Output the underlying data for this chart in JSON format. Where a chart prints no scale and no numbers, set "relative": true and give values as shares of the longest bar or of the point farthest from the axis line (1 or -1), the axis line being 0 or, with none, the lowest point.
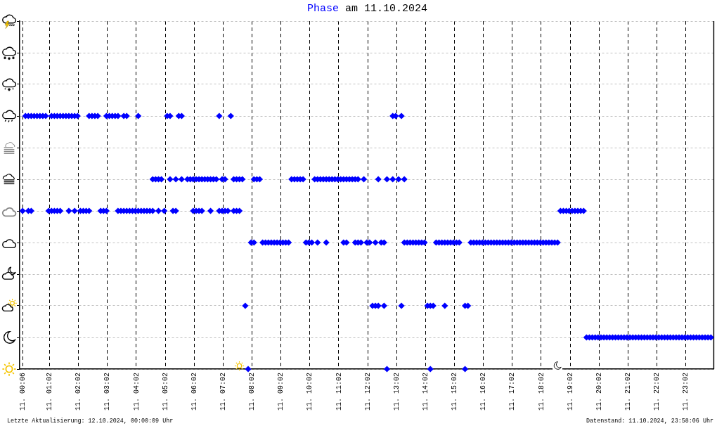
{
  "chart_data": {
    "type": "scatter",
    "title": "am 11.10.2024",
    "relative": true,
    "annotations": [
      "Letzte Aktualisierung: 12.10.2024, 00:00:09 Uhr",
      "Datenstand: 11.10.2024, 23:58:06 Uhr"
    ],
    "x": [
      "2024-10-11T00:12",
      "2024-10-11T00:18",
      "2024-10-11T00:24",
      "2024-10-11T00:30",
      "2024-10-11T00:36",
      "2024-10-11T00:42",
      "2024-10-11T00:48",
      "2024-10-11T00:54",
      "2024-10-11T01:06",
      "2024-10-11T01:12",
      "2024-10-11T01:18",
      "2024-10-11T01:24",
      "2024-10-11T01:30",
      "2024-10-11T01:36",
      "2024-10-11T01:42",
      "2024-10-11T01:48",
      "2024-10-11T01:54",
      "2024-10-11T02:00",
      "2024-10-11T02:24",
      "2024-10-11T02:30",
      "2024-10-11T02:36",
      "2024-10-11T02:42",
      "2024-10-11T03:00",
      "2024-10-11T03:06",
      "2024-10-11T03:12",
      "2024-10-11T03:18",
      "2024-10-11T03:24",
      "2024-10-11T03:36",
      "2024-10-11T03:42",
      "2024-10-11T04:06",
      "2024-10-11T05:06",
      "2024-10-11T05:12",
      "2024-10-11T05:30",
      "2024-10-11T05:36",
      "2024-10-11T06:54",
      "2024-10-11T07:18",
      "2024-10-11T12:54",
      "2024-10-11T13:00",
      "2024-10-11T13:12",
      "2024-10-11T04:36",
      "2024-10-11T04:42",
      "2024-10-11T04:48",
      "2024-10-11T04:54",
      "2024-10-11T05:12",
      "2024-10-11T05:24",
      "2024-10-11T05:36",
      "2024-10-11T05:48",
      "2024-10-11T05:54",
      "2024-10-11T06:00",
      "2024-10-11T06:06",
      "2024-10-11T06:12",
      "2024-10-11T06:18",
      "2024-10-11T06:24",
      "2024-10-11T06:30",
      "2024-10-11T06:36",
      "2024-10-11T06:42",
      "2024-10-11T06:48",
      "2024-10-11T07:00",
      "2024-10-11T07:06",
      "2024-10-11T07:24",
      "2024-10-11T07:30",
      "2024-10-11T07:36",
      "2024-10-11T07:42",
      "2024-10-11T08:06",
      "2024-10-11T08:12",
      "2024-10-11T08:18",
      "2024-10-11T09:24",
      "2024-10-11T09:30",
      "2024-10-11T09:36",
      "2024-10-11T09:42",
      "2024-10-11T09:48",
      "2024-10-11T10:12",
      "2024-10-11T10:18",
      "2024-10-11T10:24",
      "2024-10-11T10:30",
      "2024-10-11T10:36",
      "2024-10-11T10:42",
      "2024-10-11T10:48",
      "2024-10-11T10:54",
      "2024-10-11T11:00",
      "2024-10-11T11:06",
      "2024-10-11T11:12",
      "2024-10-11T11:18",
      "2024-10-11T11:24",
      "2024-10-11T11:30",
      "2024-10-11T11:36",
      "2024-10-11T11:42",
      "2024-10-11T11:54",
      "2024-10-11T12:24",
      "2024-10-11T12:42",
      "2024-10-11T12:54",
      "2024-10-11T13:06",
      "2024-10-11T13:18",
      "2024-10-11T00:06",
      "2024-10-11T00:18",
      "2024-10-11T00:24",
      "2024-10-11T01:00",
      "2024-10-11T01:06",
      "2024-10-11T01:12",
      "2024-10-11T01:18",
      "2024-10-11T01:24",
      "2024-10-11T01:42",
      "2024-10-11T01:54",
      "2024-10-11T02:06",
      "2024-10-11T02:12",
      "2024-10-11T02:18",
      "2024-10-11T02:24",
      "2024-10-11T02:48",
      "2024-10-11T02:54",
      "2024-10-11T03:00",
      "2024-10-11T03:24",
      "2024-10-11T03:30",
      "2024-10-11T03:36",
      "2024-10-11T03:42",
      "2024-10-11T03:48",
      "2024-10-11T03:54",
      "2024-10-11T04:00",
      "2024-10-11T04:06",
      "2024-10-11T04:12",
      "2024-10-11T04:18",
      "2024-10-11T04:24",
      "2024-10-11T04:30",
      "2024-10-11T04:36",
      "2024-10-11T04:48",
      "2024-10-11T05:00",
      "2024-10-11T05:18",
      "2024-10-11T05:24",
      "2024-10-11T06:00",
      "2024-10-11T06:06",
      "2024-10-11T06:12",
      "2024-10-11T06:18",
      "2024-10-11T06:36",
      "2024-10-11T06:54",
      "2024-10-11T07:00",
      "2024-10-11T07:06",
      "2024-10-11T07:12",
      "2024-10-11T07:24",
      "2024-10-11T07:30",
      "2024-10-11T07:36",
      "2024-10-11T18:42",
      "2024-10-11T18:48",
      "2024-10-11T18:54",
      "2024-10-11T19:00",
      "2024-10-11T19:06",
      "2024-10-11T19:12",
      "2024-10-11T19:18",
      "2024-10-11T19:24",
      "2024-10-11T19:30",
      "2024-10-11T08:00",
      "2024-10-11T08:06",
      "2024-10-11T08:24",
      "2024-10-11T08:30",
      "2024-10-11T08:36",
      "2024-10-11T08:42",
      "2024-10-11T08:48",
      "2024-10-11T08:54",
      "2024-10-11T09:00",
      "2024-10-11T09:06",
      "2024-10-11T09:12",
      "2024-10-11T09:18",
      "2024-10-11T09:54",
      "2024-10-11T10:00",
      "2024-10-11T10:06",
      "2024-10-11T10:18",
      "2024-10-11T10:36",
      "2024-10-11T11:12",
      "2024-10-11T11:18",
      "2024-10-11T11:36",
      "2024-10-11T11:42",
      "2024-10-11T11:48",
      "2024-10-11T12:00",
      "2024-10-11T12:06",
      "2024-10-11T12:18",
      "2024-10-11T12:30",
      "2024-10-11T12:36",
      "2024-10-11T13:18",
      "2024-10-11T13:24",
      "2024-10-11T13:30",
      "2024-10-11T13:36",
      "2024-10-11T13:42",
      "2024-10-11T13:48",
      "2024-10-11T13:54",
      "2024-10-11T14:00",
      "2024-10-11T14:24",
      "2024-10-11T14:30",
      "2024-10-11T14:36",
      "2024-10-11T14:42",
      "2024-10-11T14:48",
      "2024-10-11T14:54",
      "2024-10-11T15:00",
      "2024-10-11T15:06",
      "2024-10-11T15:12",
      "2024-10-11T15:36",
      "2024-10-11T15:42",
      "2024-10-11T15:48",
      "2024-10-11T15:54",
      "2024-10-11T16:00",
      "2024-10-11T16:06",
      "2024-10-11T16:12",
      "2024-10-11T16:18",
      "2024-10-11T16:24",
      "2024-10-11T16:30",
      "2024-10-11T16:36",
      "2024-10-11T16:42",
      "2024-10-11T16:48",
      "2024-10-11T16:54",
      "2024-10-11T17:00",
      "2024-10-11T17:06",
      "2024-10-11T17:12",
      "2024-10-11T17:18",
      "2024-10-11T17:24",
      "2024-10-11T17:30",
      "2024-10-11T17:36",
      "2024-10-11T17:42",
      "2024-10-11T17:48",
      "2024-10-11T17:54",
      "2024-10-11T18:00",
      "2024-10-11T18:06",
      "2024-10-11T18:12",
      "2024-10-11T18:18",
      "2024-10-11T18:24",
      "2024-10-11T18:30",
      "2024-10-11T18:36",
      "2024-10-11T07:48",
      "2024-10-11T12:12",
      "2024-10-11T12:18",
      "2024-10-11T12:24",
      "2024-10-11T12:36",
      "2024-10-11T13:12",
      "2024-10-11T14:06",
      "2024-10-11T14:12",
      "2024-10-11T14:18",
      "2024-10-11T14:42",
      "2024-10-11T15:24",
      "2024-10-11T15:30",
      "2024-10-11T19:36",
      "2024-10-11T19:42",
      "2024-10-11T19:48",
      "2024-10-11T19:54",
      "2024-10-11T20:00",
      "2024-10-11T20:06",
      "2024-10-11T20:12",
      "2024-10-11T20:18",
      "2024-10-11T20:24",
      "2024-10-11T20:30",
      "2024-10-11T20:36",
      "2024-10-11T20:42",
      "2024-10-11T20:48",
      "2024-10-11T20:54",
      "2024-10-11T21:00",
      "2024-10-11T21:06",
      "2024-10-11T21:12",
      "2024-10-11T21:18",
      "2024-10-11T21:24",
      "2024-10-11T21:30",
      "2024-10-11T21:36",
      "2024-10-11T21:42",
      "2024-10-11T21:48",
      "2024-10-11T21:54",
      "2024-10-11T22:00",
      "2024-10-11T22:06",
      "2024-10-11T22:12",
      "2024-10-11T22:18",
      "2024-10-11T22:24",
      "2024-10-11T22:30",
      "2024-10-11T22:36",
      "2024-10-11T22:42",
      "2024-10-11T22:48",
      "2024-10-11T22:54",
      "2024-10-11T23:00",
      "2024-10-11T23:06",
      "2024-10-11T23:12",
      "2024-10-11T23:18",
      "2024-10-11T23:24",
      "2024-10-11T23:30",
      "2024-10-11T23:36",
      "2024-10-11T23:42",
      "2024-10-11T23:48",
      "2024-10-11T23:54",
      "2024-10-11T07:54",
      "2024-10-11T12:42",
      "2024-10-11T14:12",
      "2024-10-11T15:24"
    ],
    "series": [
      {
        "name": "Phase",
        "color": "#0000ff",
        "values": [
          1,
          1,
          1,
          1,
          1,
          1,
          1,
          1,
          1,
          1,
          1,
          1,
          1,
          1,
          1,
          1,
          1,
          1,
          1,
          1,
          1,
          1,
          1,
          1,
          1,
          1,
          1,
          1,
          1,
          1,
          1,
          1,
          1,
          1,
          1,
          1,
          1,
          1,
          1,
          0.75,
          0.75,
          0.75,
          0.75,
          0.75,
          0.75,
          0.75,
          0.75,
          0.75,
          0.75,
          0.75,
          0.75,
          0.75,
          0.75,
          0.75,
          0.75,
          0.75,
          0.75,
          0.75,
          0.75,
          0.75,
          0.75,
          0.75,
          0.75,
          0.75,
          0.75,
          0.75,
          0.75,
          0.75,
          0.75,
          0.75,
          0.75,
          0.75,
          0.75,
          0.75,
          0.75,
          0.75,
          0.75,
          0.75,
          0.75,
          0.75,
          0.75,
          0.75,
          0.75,
          0.75,
          0.75,
          0.75,
          0.75,
          0.75,
          0.75,
          0.75,
          0.75,
          0.75,
          0.75,
          0.625,
          0.625,
          0.625,
          0.625,
          0.625,
          0.625,
          0.625,
          0.625,
          0.625,
          0.625,
          0.625,
          0.625,
          0.625,
          0.625,
          0.625,
          0.625,
          0.625,
          0.625,
          0.625,
          0.625,
          0.625,
          0.625,
          0.625,
          0.625,
          0.625,
          0.625,
          0.625,
          0.625,
          0.625,
          0.625,
          0.625,
          0.625,
          0.625,
          0.625,
          0.625,
          0.625,
          0.625,
          0.625,
          0.625,
          0.625,
          0.625,
          0.625,
          0.625,
          0.625,
          0.625,
          0.625,
          0.625,
          0.625,
          0.625,
          0.625,
          0.625,
          0.625,
          0.625,
          0.625,
          0.625,
          0.5,
          0.5,
          0.5,
          0.5,
          0.5,
          0.5,
          0.5,
          0.5,
          0.5,
          0.5,
          0.5,
          0.5,
          0.5,
          0.5,
          0.5,
          0.5,
          0.5,
          0.5,
          0.5,
          0.5,
          0.5,
          0.5,
          0.5,
          0.5,
          0.5,
          0.5,
          0.5,
          0.5,
          0.5,
          0.5,
          0.5,
          0.5,
          0.5,
          0.5,
          0.5,
          0.5,
          0.5,
          0.5,
          0.5,
          0.5,
          0.5,
          0.5,
          0.5,
          0.5,
          0.5,
          0.5,
          0.5,
          0.5,
          0.5,
          0.5,
          0.5,
          0.5,
          0.5,
          0.5,
          0.5,
          0.5,
          0.5,
          0.5,
          0.5,
          0.5,
          0.5,
          0.5,
          0.5,
          0.5,
          0.5,
          0.5,
          0.5,
          0.5,
          0.5,
          0.5,
          0.5,
          0.5,
          0.5,
          0.5,
          0.5,
          0.25,
          0.25,
          0.25,
          0.25,
          0.25,
          0.25,
          0.25,
          0.25,
          0.25,
          0.25,
          0.25,
          0.25,
          0.125,
          0.125,
          0.125,
          0.125,
          0.125,
          0.125,
          0.125,
          0.125,
          0.125,
          0.125,
          0.125,
          0.125,
          0.125,
          0.125,
          0.125,
          0.125,
          0.125,
          0.125,
          0.125,
          0.125,
          0.125,
          0.125,
          0.125,
          0.125,
          0.125,
          0.125,
          0.125,
          0.125,
          0.125,
          0.125,
          0.125,
          0.125,
          0.125,
          0.125,
          0.125,
          0.125,
          0.125,
          0.125,
          0.125,
          0.125,
          0.125,
          0.125,
          0.125,
          0.125,
          0,
          0,
          0,
          0
        ]
      }
    ],
    "xlim": [
      "2024-10-11T00:00",
      "2024-10-12T00:00"
    ],
    "xticks": [
      {
        "value": "2024-10-11T00:06",
        "label": "11. 00:06"
      },
      {
        "value": "2024-10-11T01:02",
        "label": "11. 01:02"
      },
      {
        "value": "2024-10-11T02:02",
        "label": "11. 02:02"
      },
      {
        "value": "2024-10-11T03:02",
        "label": "11. 03:02"
      },
      {
        "value": "2024-10-11T04:02",
        "label": "11. 04:02"
      },
      {
        "value": "2024-10-11T05:02",
        "label": "11. 05:02"
      },
      {
        "value": "2024-10-11T06:02",
        "label": "11. 06:02"
      },
      {
        "value": "2024-10-11T07:02",
        "label": "11. 07:02"
      },
      {
        "value": "2024-10-11T08:02",
        "label": "11. 08:02"
      },
      {
        "value": "2024-10-11T09:02",
        "label": "11. 09:02"
      },
      {
        "value": "2024-10-11T10:02",
        "label": "11. 10:02"
      },
      {
        "value": "2024-10-11T11:02",
        "label": "11. 11:02"
      },
      {
        "value": "2024-10-11T12:02",
        "label": "11. 12:02"
      },
      {
        "value": "2024-10-11T13:02",
        "label": "11. 13:02"
      },
      {
        "value": "2024-10-11T14:02",
        "label": "11. 14:02"
      },
      {
        "value": "2024-10-11T15:02",
        "label": "11. 15:02"
      },
      {
        "value": "2024-10-11T16:02",
        "label": "11. 16:02"
      },
      {
        "value": "2024-10-11T17:02",
        "label": "11. 17:02"
      },
      {
        "value": "2024-10-11T18:02",
        "label": "11. 18:02"
      },
      {
        "value": "2024-10-11T19:02",
        "label": "11. 19:02"
      },
      {
        "value": "2024-10-11T20:02",
        "label": "11. 20:02"
      },
      {
        "value": "2024-10-11T21:02",
        "label": "11. 21:02"
      },
      {
        "value": "2024-10-11T22:02",
        "label": "11. 22:02"
      },
      {
        "value": "2024-10-11T23:02",
        "label": "11. 23:02"
      }
    ],
    "tick_labels": "x",
    "grid": true,
    "marker": "diamond"
  }
}
